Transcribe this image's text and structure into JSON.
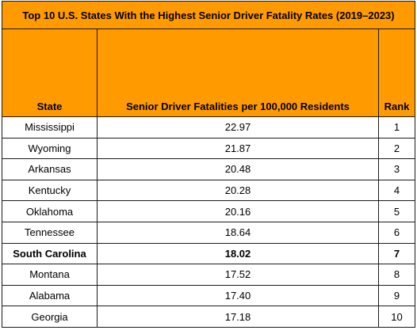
{
  "table": {
    "title": "Top 10 U.S. States With the Highest Senior Driver Fatality Rates (2019–2023)",
    "headers": [
      "State",
      "Senior Driver Fatalities per 100,000 Residents",
      "Rank"
    ],
    "rows": [
      {
        "state": "Mississippi",
        "rate": "22.97",
        "rank": "1",
        "bold": false
      },
      {
        "state": "Wyoming",
        "rate": "21.87",
        "rank": "2",
        "bold": false
      },
      {
        "state": "Arkansas",
        "rate": "20.48",
        "rank": "3",
        "bold": false
      },
      {
        "state": "Kentucky",
        "rate": "20.28",
        "rank": "4",
        "bold": false
      },
      {
        "state": "Oklahoma",
        "rate": "20.16",
        "rank": "5",
        "bold": false
      },
      {
        "state": "Tennessee",
        "rate": "18.64",
        "rank": "6",
        "bold": false
      },
      {
        "state": "South Carolina",
        "rate": "18.02",
        "rank": "7",
        "bold": true
      },
      {
        "state": "Montana",
        "rate": "17.52",
        "rank": "8",
        "bold": false
      },
      {
        "state": "Alabama",
        "rate": "17.40",
        "rank": "9",
        "bold": false
      },
      {
        "state": "Georgia",
        "rate": "17.18",
        "rank": "10",
        "bold": false
      }
    ]
  },
  "colors": {
    "header_bg": "#ff9a00",
    "border": "#1a1a1a"
  }
}
